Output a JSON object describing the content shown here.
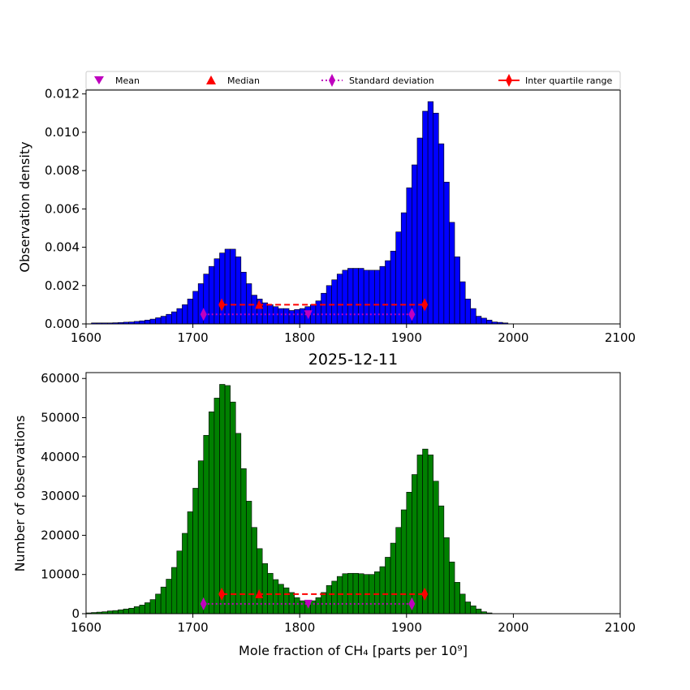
{
  "chart_data": [
    {
      "type": "bar",
      "panel": "top",
      "title": "",
      "xlabel": "",
      "ylabel": "Observation density",
      "xlim": [
        1600,
        2100
      ],
      "ylim": [
        0,
        0.0122
      ],
      "xticks": [
        "1600",
        "1700",
        "1800",
        "1900",
        "2000",
        "2100"
      ],
      "yticks": [
        "0.000",
        "0.002",
        "0.004",
        "0.006",
        "0.008",
        "0.010",
        "0.012"
      ],
      "bar_color": "#0000ff",
      "bin_width": 5,
      "bin_start": 1605,
      "values": [
        5e-05,
        5e-05,
        5e-05,
        5e-05,
        6e-05,
        7e-05,
        9e-05,
        0.0001,
        0.00013,
        0.00016,
        0.0002,
        0.00025,
        0.00032,
        0.0004,
        0.0005,
        0.00063,
        0.0008,
        0.001,
        0.0013,
        0.0017,
        0.0021,
        0.0026,
        0.003,
        0.0034,
        0.0037,
        0.0039,
        0.0039,
        0.0035,
        0.0027,
        0.0021,
        0.0015,
        0.0013,
        0.0011,
        0.001,
        0.0009,
        0.0008,
        0.0008,
        0.0007,
        0.00075,
        0.0008,
        0.0009,
        0.001,
        0.0012,
        0.0016,
        0.002,
        0.0023,
        0.0026,
        0.0028,
        0.0029,
        0.0029,
        0.0029,
        0.0028,
        0.0028,
        0.0028,
        0.003,
        0.0033,
        0.0038,
        0.0048,
        0.0058,
        0.0071,
        0.0083,
        0.0097,
        0.0111,
        0.0116,
        0.011,
        0.0094,
        0.0074,
        0.0053,
        0.0035,
        0.0022,
        0.0013,
        0.0008,
        0.0004,
        0.0003,
        0.0002,
        0.0001,
        8e-05,
        5e-05
      ],
      "stats": {
        "mean": {
          "x": 1808,
          "y": 0.0005
        },
        "median": {
          "x": 1762,
          "y": 0.001
        },
        "std": {
          "x1": 1710,
          "x2": 1905,
          "y": 0.0005
        },
        "iqr": {
          "x1": 1727,
          "x2": 1917,
          "y": 0.001
        }
      },
      "legend": {
        "placement": "top",
        "entries": [
          "Mean",
          "Median",
          "Standard deviation",
          "Inter quartile range"
        ]
      }
    },
    {
      "type": "bar",
      "panel": "bottom",
      "title": "2025-12-11",
      "xlabel": "Mole fraction of CH₄ [parts per 10⁹]",
      "ylabel": "Number of observations",
      "xlim": [
        1600,
        2100
      ],
      "ylim": [
        0,
        61500
      ],
      "xticks": [
        "1600",
        "1700",
        "1800",
        "1900",
        "2000",
        "2100"
      ],
      "yticks": [
        "0",
        "10000",
        "20000",
        "30000",
        "40000",
        "50000",
        "60000"
      ],
      "bar_color": "#008000",
      "bin_width": 5,
      "bin_start": 1600,
      "values": [
        200,
        300,
        400,
        500,
        700,
        800,
        1000,
        1200,
        1400,
        1800,
        2200,
        2800,
        3600,
        5000,
        6800,
        8800,
        11800,
        16000,
        20500,
        26000,
        32000,
        39000,
        45500,
        51500,
        55000,
        58500,
        58200,
        54000,
        46000,
        37000,
        28700,
        22000,
        16600,
        12800,
        10300,
        8700,
        7500,
        6600,
        5400,
        4100,
        3300,
        3000,
        3300,
        4100,
        5400,
        7200,
        8300,
        9500,
        10200,
        10300,
        10300,
        10200,
        10000,
        10000,
        10700,
        12000,
        14400,
        18000,
        22000,
        26500,
        31000,
        35500,
        40500,
        42000,
        40500,
        33800,
        27500,
        19400,
        13200,
        8000,
        5000,
        3000,
        2000,
        1200,
        500,
        200
      ],
      "stats": {
        "mean": {
          "x": 1808,
          "y": 2500
        },
        "median": {
          "x": 1762,
          "y": 5000
        },
        "std": {
          "x1": 1710,
          "x2": 1905,
          "y": 2500
        },
        "iqr": {
          "x1": 1727,
          "x2": 1917,
          "y": 5000
        }
      }
    }
  ],
  "colors": {
    "mean": "#bf00bf",
    "median": "#ff0000",
    "std": "#bf00bf",
    "iqr": "#ff0000"
  }
}
